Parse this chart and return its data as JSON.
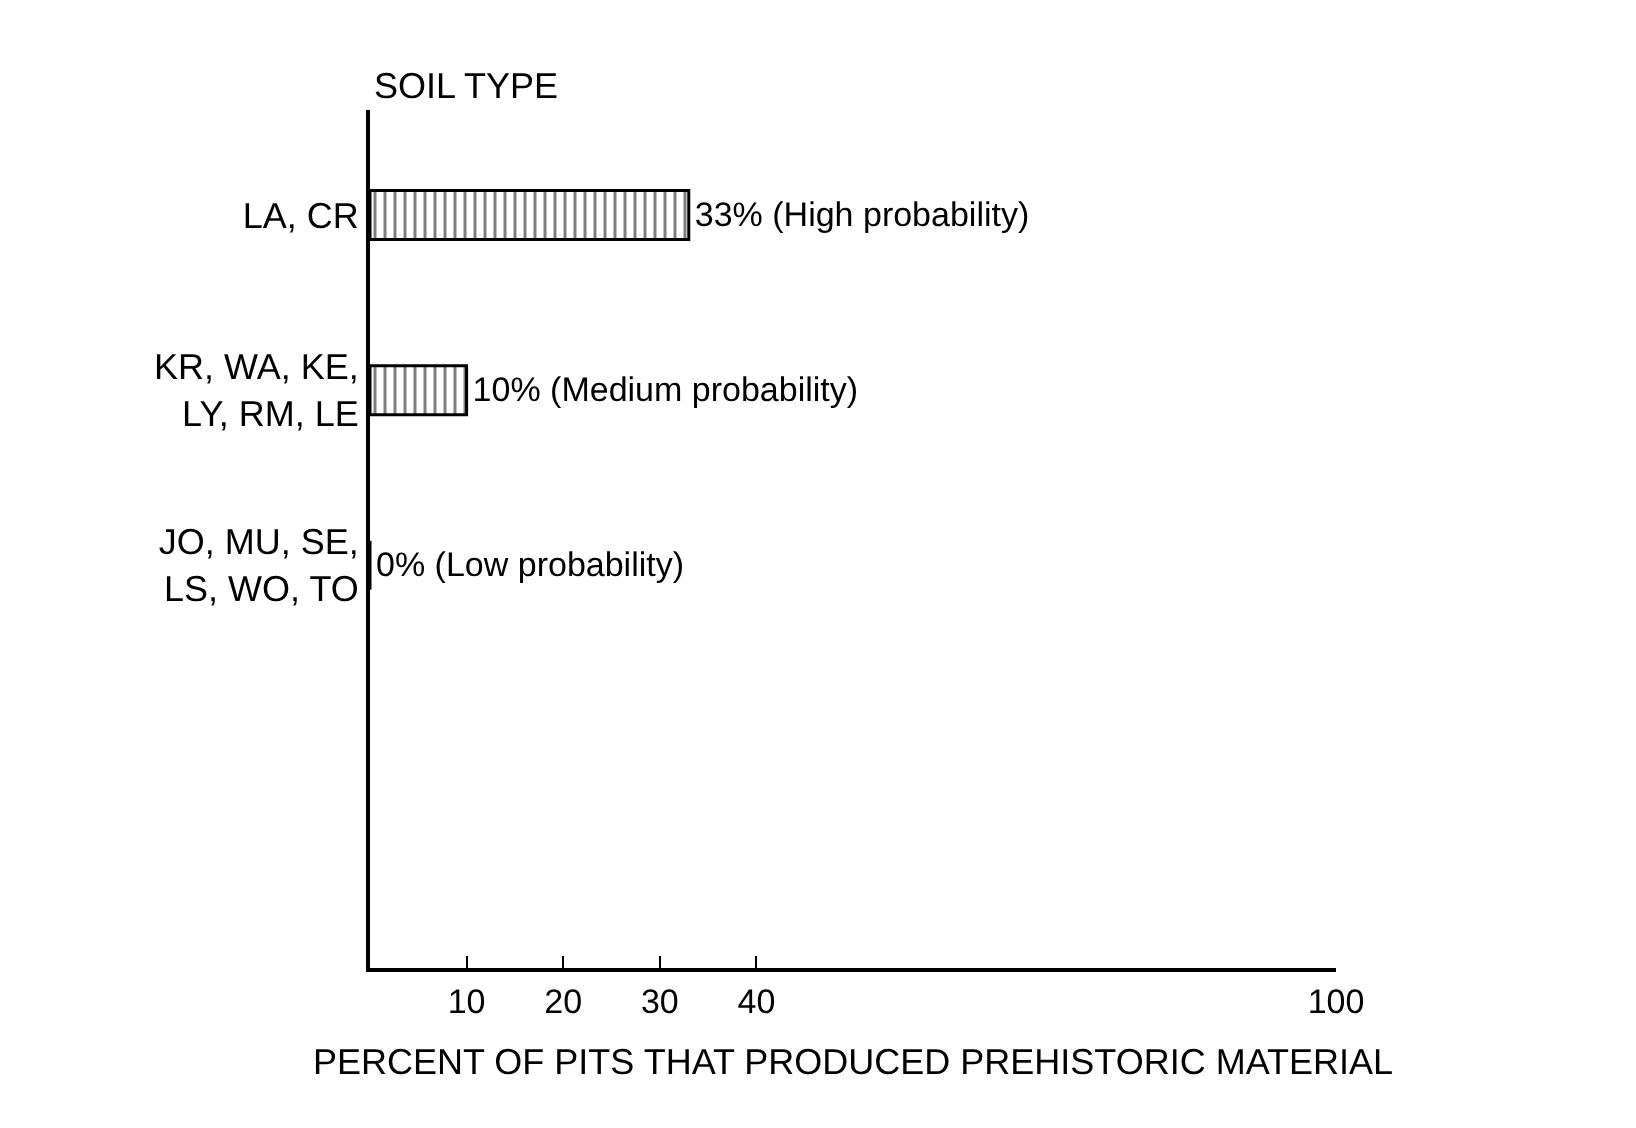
{
  "chart_data": {
    "type": "bar",
    "orientation": "horizontal",
    "ylabel": "SOIL TYPE",
    "xlabel": "PERCENT OF PITS THAT PRODUCED PREHISTORIC MATERIAL",
    "categories": [
      "LA, CR",
      "KR, WA, KE,\nLY, RM, LE",
      "JO, MU, SE,\nLS, WO, TO"
    ],
    "values": [
      33,
      10,
      0
    ],
    "color": "#000000",
    "value_labels": [
      "33% (High probability)",
      "10% (Medium probability)",
      "0% (Low probability)"
    ],
    "xlim": [
      0,
      100
    ],
    "xticks": [
      10,
      20,
      30,
      40,
      100
    ]
  }
}
